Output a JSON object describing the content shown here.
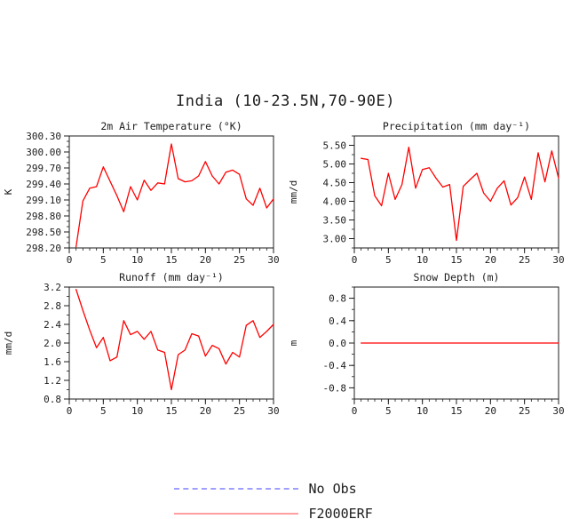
{
  "figure": {
    "title": "India (10-23.5N,70-90E)"
  },
  "style": {
    "background": "#ffffff",
    "text_color": "#1c1c1c",
    "axis_color": "#1c1c1c",
    "series_color": "#ff0000"
  },
  "legend": {
    "items": [
      {
        "label": "No Obs",
        "line_style": "dashed",
        "color": "#9f9fff"
      },
      {
        "label": "F2000ERF",
        "line_style": "solid",
        "color": "#ff9f9f"
      }
    ]
  },
  "chart_data": [
    {
      "id": "air-temperature",
      "type": "line",
      "title": "2m Air Temperature (°K)",
      "ylabel": "K",
      "xlabel": "",
      "series_name": "F2000ERF",
      "line_color": "#ff0000",
      "xlim": [
        0,
        30
      ],
      "ylim": [
        298.2,
        300.3
      ],
      "xticks": [
        0,
        5,
        10,
        15,
        20,
        25,
        30
      ],
      "xtick_labels": [
        "0",
        "5",
        "10",
        "15",
        "20",
        "25",
        "30"
      ],
      "xtick_minor": 1,
      "yticks": [
        298.2,
        298.5,
        298.8,
        299.1,
        299.4,
        299.7,
        300.0,
        300.3
      ],
      "ytick_labels": [
        "298.20",
        "298.50",
        "298.80",
        "299.10",
        "299.40",
        "299.70",
        "300.00",
        "300.30"
      ],
      "ytick_minor": 0.1,
      "x": [
        1,
        2,
        3,
        4,
        5,
        6,
        7,
        8,
        9,
        10,
        11,
        12,
        13,
        14,
        15,
        16,
        17,
        18,
        19,
        20,
        21,
        22,
        23,
        24,
        25,
        26,
        27,
        28,
        29,
        30
      ],
      "values": [
        298.22,
        299.08,
        299.32,
        299.35,
        299.72,
        299.45,
        299.18,
        298.88,
        299.35,
        299.1,
        299.47,
        299.28,
        299.42,
        299.4,
        300.15,
        299.5,
        299.44,
        299.46,
        299.55,
        299.82,
        299.55,
        299.4,
        299.62,
        299.66,
        299.58,
        299.12,
        299.0,
        299.32,
        298.95,
        299.12
      ]
    },
    {
      "id": "precipitation",
      "type": "line",
      "title": "Precipitation (mm day⁻¹)",
      "ylabel": "mm/d",
      "xlabel": "",
      "series_name": "F2000ERF",
      "line_color": "#ff0000",
      "xlim": [
        0,
        30
      ],
      "ylim": [
        2.75,
        5.75
      ],
      "xticks": [
        0,
        5,
        10,
        15,
        20,
        25,
        30
      ],
      "xtick_labels": [
        "0",
        "5",
        "10",
        "15",
        "20",
        "25",
        "30"
      ],
      "xtick_minor": 1,
      "yticks": [
        3.0,
        3.5,
        4.0,
        4.5,
        5.0,
        5.5
      ],
      "ytick_labels": [
        "3.00",
        "3.50",
        "4.00",
        "4.50",
        "5.00",
        "5.50"
      ],
      "ytick_minor": 0.25,
      "x": [
        1,
        2,
        3,
        4,
        5,
        6,
        7,
        8,
        9,
        10,
        11,
        12,
        13,
        14,
        15,
        16,
        17,
        18,
        19,
        20,
        21,
        22,
        23,
        24,
        25,
        26,
        27,
        28,
        29,
        30
      ],
      "values": [
        5.15,
        5.12,
        4.15,
        3.88,
        4.75,
        4.05,
        4.45,
        5.45,
        4.35,
        4.85,
        4.9,
        4.62,
        4.38,
        4.45,
        2.95,
        4.4,
        4.58,
        4.75,
        4.22,
        4.0,
        4.35,
        4.55,
        3.9,
        4.1,
        4.65,
        4.05,
        5.3,
        4.52,
        5.35,
        4.62
      ]
    },
    {
      "id": "runoff",
      "type": "line",
      "title": "Runoff (mm day⁻¹)",
      "ylabel": "mm/d",
      "xlabel": "",
      "series_name": "F2000ERF",
      "line_color": "#ff0000",
      "xlim": [
        0,
        30
      ],
      "ylim": [
        0.8,
        3.2
      ],
      "xticks": [
        0,
        5,
        10,
        15,
        20,
        25,
        30
      ],
      "xtick_labels": [
        "0",
        "5",
        "10",
        "15",
        "20",
        "25",
        "30"
      ],
      "xtick_minor": 1,
      "yticks": [
        0.8,
        1.2,
        1.6,
        2.0,
        2.4,
        2.8,
        3.2
      ],
      "ytick_labels": [
        "0.8",
        "1.2",
        "1.6",
        "2.0",
        "2.4",
        "2.8",
        "3.2"
      ],
      "ytick_minor": 0.2,
      "x": [
        1,
        2,
        3,
        4,
        5,
        6,
        7,
        8,
        9,
        10,
        11,
        12,
        13,
        14,
        15,
        16,
        17,
        18,
        19,
        20,
        21,
        22,
        23,
        24,
        25,
        26,
        27,
        28,
        29,
        30
      ],
      "values": [
        3.15,
        2.7,
        2.28,
        1.9,
        2.12,
        1.62,
        1.7,
        2.48,
        2.18,
        2.25,
        2.08,
        2.25,
        1.85,
        1.8,
        1.0,
        1.75,
        1.85,
        2.2,
        2.15,
        1.72,
        1.95,
        1.88,
        1.55,
        1.8,
        1.7,
        2.38,
        2.48,
        2.12,
        2.25,
        2.4
      ]
    },
    {
      "id": "snow-depth",
      "type": "line",
      "title": "Snow Depth (m)",
      "ylabel": "m",
      "xlabel": "",
      "series_name": "F2000ERF",
      "line_color": "#ff0000",
      "xlim": [
        0,
        30
      ],
      "ylim": [
        -1.0,
        1.0
      ],
      "xticks": [
        0,
        5,
        10,
        15,
        20,
        25,
        30
      ],
      "xtick_labels": [
        "0",
        "5",
        "10",
        "15",
        "20",
        "25",
        "30"
      ],
      "xtick_minor": 1,
      "yticks": [
        -0.8,
        -0.4,
        0.0,
        0.4,
        0.8
      ],
      "ytick_labels": [
        "-0.8",
        "-0.4",
        "0.0",
        "0.4",
        "0.8"
      ],
      "ytick_minor": 0.2,
      "x": [
        1,
        2,
        3,
        4,
        5,
        6,
        7,
        8,
        9,
        10,
        11,
        12,
        13,
        14,
        15,
        16,
        17,
        18,
        19,
        20,
        21,
        22,
        23,
        24,
        25,
        26,
        27,
        28,
        29,
        30
      ],
      "values": [
        0.0,
        0.0,
        0.0,
        0.0,
        0.0,
        0.0,
        0.0,
        0.0,
        0.0,
        0.0,
        0.0,
        0.0,
        0.0,
        0.0,
        0.0,
        0.0,
        0.0,
        0.0,
        0.0,
        0.0,
        0.0,
        0.0,
        0.0,
        0.0,
        0.0,
        0.0,
        0.0,
        0.0,
        0.0,
        0.0
      ]
    }
  ]
}
